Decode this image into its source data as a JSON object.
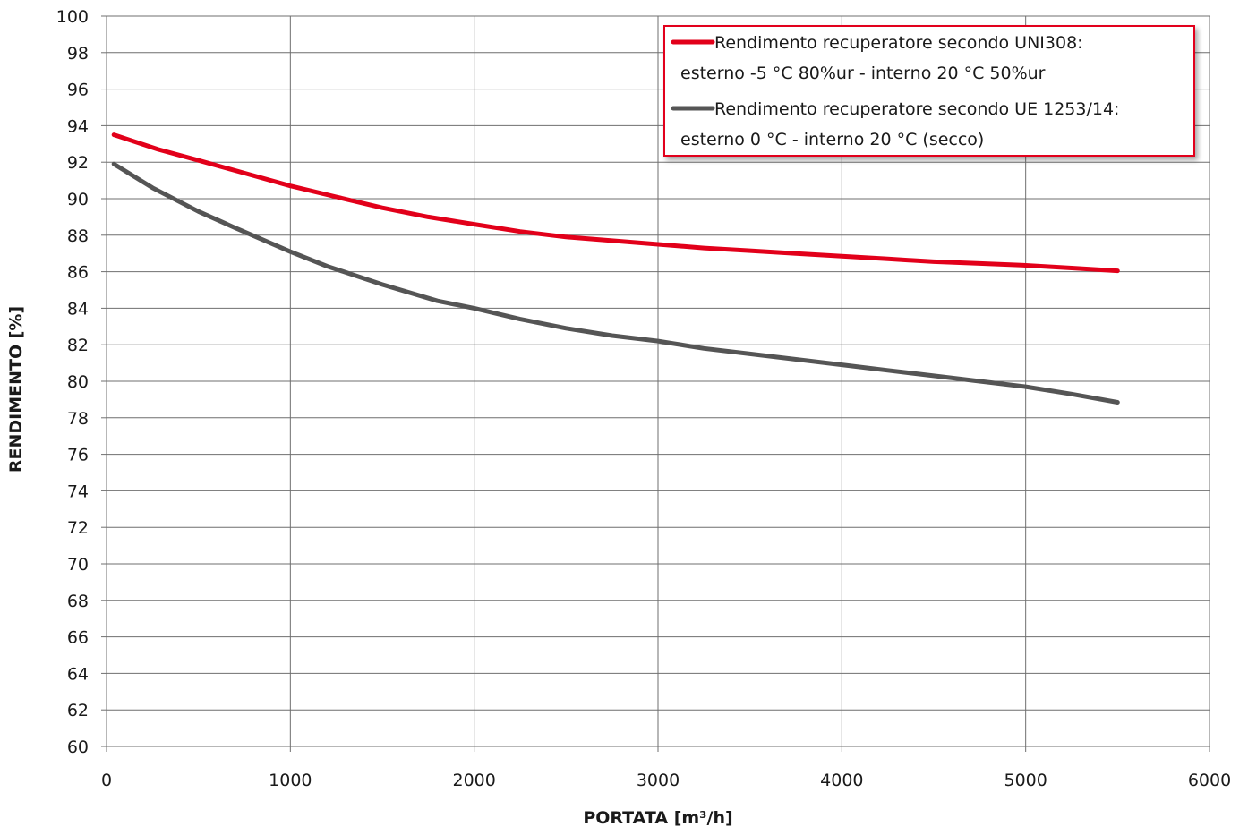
{
  "chart_data": {
    "type": "line",
    "xlabel": "PORTATA [m³/h]",
    "ylabel": "RENDIMENTO [%]",
    "xlim": [
      0,
      6000
    ],
    "ylim": [
      60,
      100
    ],
    "x_ticks": [
      0,
      1000,
      2000,
      3000,
      4000,
      5000,
      6000
    ],
    "y_ticks": [
      60,
      62,
      64,
      66,
      68,
      70,
      72,
      74,
      76,
      78,
      80,
      82,
      84,
      86,
      88,
      90,
      92,
      94,
      96,
      98,
      100
    ],
    "grid": true,
    "legend_position": "top-right",
    "series": [
      {
        "name_lines": [
          "Rendimento recuperatore secondo UNI308:",
          "esterno -5 °C 80%ur - interno 20 °C 50%ur"
        ],
        "color": "#e2001a",
        "x": [
          40,
          280,
          500,
          750,
          1000,
          1250,
          1500,
          1750,
          2000,
          2250,
          2500,
          2750,
          3000,
          3250,
          3500,
          3750,
          4000,
          4250,
          4500,
          4750,
          5000,
          5250,
          5500
        ],
        "y": [
          93.5,
          92.7,
          92.1,
          91.4,
          90.7,
          90.1,
          89.5,
          89.0,
          88.6,
          88.2,
          87.9,
          87.7,
          87.5,
          87.3,
          87.15,
          87.0,
          86.85,
          86.7,
          86.55,
          86.45,
          86.35,
          86.2,
          86.05
        ]
      },
      {
        "name_lines": [
          "Rendimento recuperatore secondo UE 1253/14:",
          "esterno 0 °C - interno 20 °C (secco)"
        ],
        "color": "#555555",
        "x": [
          40,
          250,
          500,
          700,
          1000,
          1200,
          1500,
          1800,
          2000,
          2250,
          2500,
          2750,
          3000,
          3250,
          3500,
          3750,
          4000,
          4250,
          4500,
          4750,
          5000,
          5250,
          5500
        ],
        "y": [
          91.9,
          90.6,
          89.3,
          88.4,
          87.1,
          86.3,
          85.3,
          84.4,
          84.0,
          83.4,
          82.9,
          82.5,
          82.2,
          81.8,
          81.5,
          81.2,
          80.9,
          80.6,
          80.3,
          80.0,
          79.7,
          79.3,
          78.85
        ]
      }
    ]
  }
}
